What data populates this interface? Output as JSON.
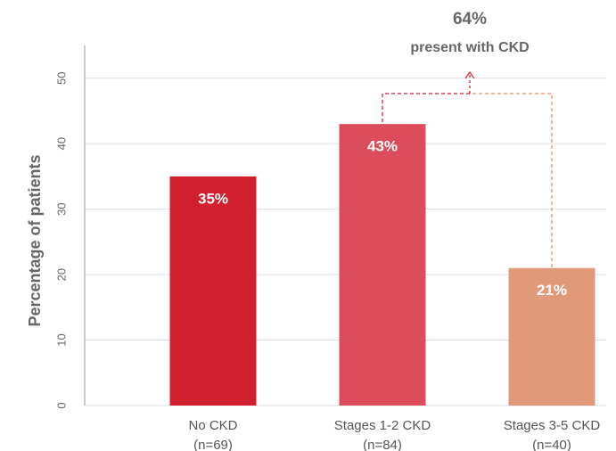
{
  "chart_data": {
    "type": "bar",
    "ylabel": "Percentage of patients",
    "categories": [
      "No CKD",
      "Stages 1-2 CKD",
      "Stages 3-5 CKD"
    ],
    "category_notes": [
      "(n=69)",
      "(n=84)",
      "(n=40)"
    ],
    "values": [
      35,
      43,
      21
    ],
    "value_labels": [
      "35%",
      "43%",
      "21%"
    ],
    "colors": [
      "#d11f2e",
      "#dc4c5a",
      "#e09a7a"
    ],
    "ylim": [
      0,
      55
    ],
    "yticks": [
      0,
      10,
      20,
      30,
      40,
      50
    ],
    "grid": true,
    "annotation": {
      "value_label": "64%",
      "text": "present with CKD"
    }
  }
}
